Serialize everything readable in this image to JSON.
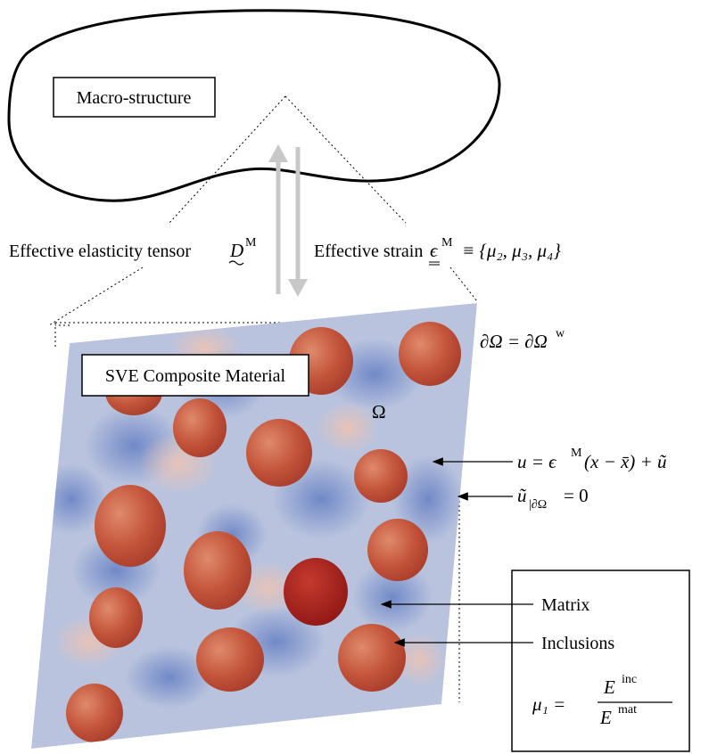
{
  "macro_label": "Macro-structure",
  "sve_label": "SVE Composite Material",
  "left_label_text": "Effective elasticity tensor",
  "left_label_symbol": "D",
  "left_label_sup": "M",
  "right_label_text": "Effective strain",
  "right_label_symbol": "ϵ",
  "right_label_sup": "M",
  "right_label_set": "≡ {μ₂, μ₃, μ₄}",
  "boundary_label": "∂Ω = ∂Ω",
  "boundary_sup": "w",
  "domain_label": "Ω",
  "disp_eq_main": "u = ϵ",
  "disp_eq_sup": "M",
  "disp_eq_rest": "(x − x̄) + ũ",
  "bc_eq": "ũ",
  "bc_sub": "|∂Ω",
  "bc_rest": "= 0",
  "matrix_label": "Matrix",
  "inclusions_label": "Inclusions",
  "ratio_lhs": "μ₁ =",
  "ratio_num": "E",
  "ratio_num_sup": "inc",
  "ratio_den": "E",
  "ratio_den_sup": "mat",
  "colors": {
    "matrix_blue": "#7f97cf",
    "matrix_light": "#c9cfe2",
    "inclusion_red": "#c95a40",
    "inclusion_dark": "#a61e1e",
    "arrow_gray": "#c8c8c8"
  }
}
